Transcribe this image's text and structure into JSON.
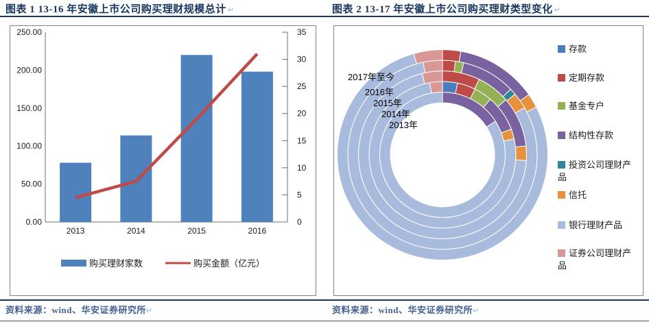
{
  "page": {
    "figure1": {
      "title": "图表 1  13-16 年安徽上市公司购买理财规模总计"
    },
    "figure2": {
      "title": "图表 2  13-17 年安徽上市公司购买理财类型变化"
    },
    "source_label": "资料来源：wind、华安证券研究所",
    "return_mark": "↵"
  },
  "colors": {
    "title_navy": "#17375E",
    "rule_navy": "#17375E",
    "box_border": "#828282",
    "axis_line": "#6E6E6E",
    "axis_text": "#1a1a1a",
    "bar_blue": "#4F81BD",
    "line_red": "#BE4B48",
    "source_text": "#44618F"
  },
  "chart_data": [
    {
      "type": "bar",
      "title": "",
      "categories": [
        "2013",
        "2014",
        "2015",
        "2016"
      ],
      "series": [
        {
          "name": "购买理财家数",
          "kind": "bar",
          "axis": "left",
          "values": [
            78,
            114,
            220,
            198
          ],
          "color": "#4F81BD"
        },
        {
          "name": "购买金额（亿元）",
          "kind": "line",
          "axis": "right",
          "values": [
            4.5,
            7.5,
            19,
            31
          ],
          "color": "#BE4B48"
        }
      ],
      "left_axis": {
        "min": 0,
        "max": 250,
        "ticks": [
          "0.00",
          "50.00",
          "100.00",
          "150.00",
          "200.00",
          "250.00"
        ]
      },
      "right_axis": {
        "min": 0,
        "max": 35,
        "ticks": [
          "0",
          "5",
          "10",
          "15",
          "20",
          "25",
          "30",
          "35"
        ]
      },
      "grid": false,
      "legend_position": "bottom"
    },
    {
      "type": "pie",
      "subtype": "multi-ring-donut",
      "title": "",
      "categories": [
        "存款",
        "定期存款",
        "基金专户",
        "结构性存款",
        "投资公司理财产品",
        "信托",
        "银行理财产品",
        "证券公司理财产品"
      ],
      "palette": [
        "#4A7EBB",
        "#BE4B48",
        "#94B155",
        "#7A62A0",
        "#31859C",
        "#E8913D",
        "#A8BBDC",
        "#D99795"
      ],
      "ring_order": "innermost-first",
      "rings": [
        {
          "label": "2013年",
          "values_pct": [
            0,
            0,
            0,
            16,
            0,
            0,
            84,
            0
          ]
        },
        {
          "label": "2014年",
          "values_pct": [
            3.3,
            4,
            4,
            8,
            0,
            2.2,
            75.7,
            2.8
          ]
        },
        {
          "label": "2015年",
          "values_pct": [
            0,
            7.2,
            6.4,
            9.7,
            0,
            2.8,
            70,
            3.9
          ]
        },
        {
          "label": "2016年",
          "values_pct": [
            0,
            2.2,
            1.4,
            9.2,
            1.1,
            2.8,
            80,
            3.3
          ]
        },
        {
          "label": "2017年至今",
          "values_pct": [
            0,
            2.8,
            0,
            12.5,
            0,
            2.2,
            78.1,
            4.4
          ]
        }
      ],
      "legend_position": "right",
      "start_angle": "12-oclock-clockwise"
    }
  ]
}
